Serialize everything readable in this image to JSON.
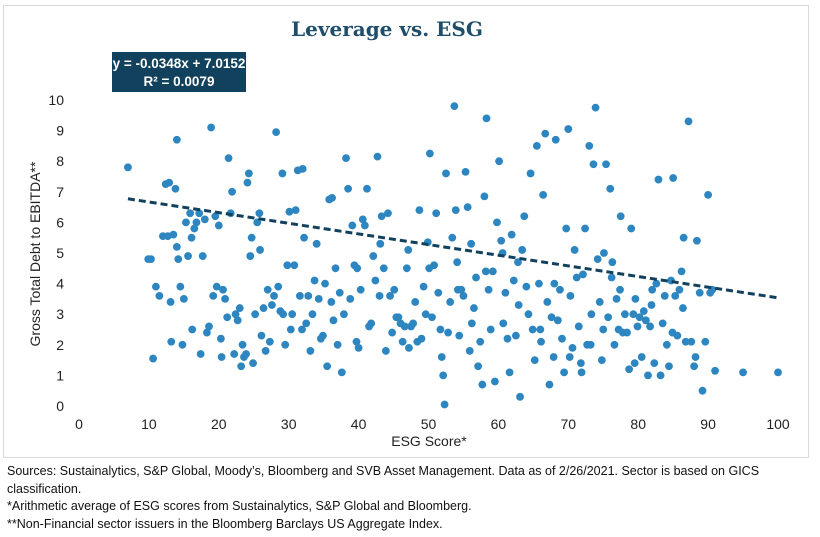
{
  "chart_data": {
    "type": "scatter",
    "title": "Leverage vs. ESG",
    "xlabel": "ESG Score*",
    "ylabel": "Gross Total Debt to EBITDA**",
    "xlim": [
      0,
      100
    ],
    "ylim": [
      0,
      10
    ],
    "x_ticks": [
      0,
      10,
      20,
      30,
      40,
      50,
      60,
      70,
      80,
      90,
      100
    ],
    "y_ticks": [
      0,
      1,
      2,
      3,
      4,
      5,
      6,
      7,
      8,
      9,
      10
    ],
    "grid": false,
    "marker_color": "#2e86c1",
    "trendline": {
      "equation": "y = -0.0348x + 7.0152",
      "r_squared": "R² = 0.0079",
      "slope": -0.0348,
      "intercept": 7.0152,
      "x_range": [
        7,
        100
      ],
      "color": "#11415c",
      "style": "dashed"
    },
    "points": [
      [
        7,
        7.8
      ],
      [
        10.3,
        4.8
      ],
      [
        10.6,
        1.55
      ],
      [
        11,
        3.9
      ],
      [
        11.5,
        3.6
      ],
      [
        12,
        5.55
      ],
      [
        12.4,
        7.25
      ],
      [
        12.7,
        5.55
      ],
      [
        12.9,
        7.3
      ],
      [
        13.2,
        2.1
      ],
      [
        13.5,
        5.6
      ],
      [
        13.8,
        7.1
      ],
      [
        14,
        8.7
      ],
      [
        14,
        5.2
      ],
      [
        14.2,
        4.8
      ],
      [
        14.5,
        3.9
      ],
      [
        14.8,
        2.0
      ],
      [
        15,
        3.5
      ],
      [
        15.3,
        6.0
      ],
      [
        15.6,
        4.9
      ],
      [
        15.9,
        6.3
      ],
      [
        16.2,
        2.5
      ],
      [
        16.5,
        5.8
      ],
      [
        16.8,
        6.0
      ],
      [
        17.2,
        6.3
      ],
      [
        17.4,
        1.7
      ],
      [
        17.7,
        4.9
      ],
      [
        18.0,
        6.1
      ],
      [
        18.3,
        2.4
      ],
      [
        18.6,
        2.6
      ],
      [
        18.9,
        9.1
      ],
      [
        19.2,
        3.6
      ],
      [
        19.5,
        6.2
      ],
      [
        19.7,
        3.9
      ],
      [
        20.0,
        5.9
      ],
      [
        20.3,
        2.2
      ],
      [
        20.6,
        3.8
      ],
      [
        20.9,
        3.5
      ],
      [
        21.2,
        2.9
      ],
      [
        21.4,
        8.1
      ],
      [
        21.7,
        6.3
      ],
      [
        21.9,
        7.0
      ],
      [
        22.2,
        1.7
      ],
      [
        22.4,
        3.0
      ],
      [
        22.7,
        2.8
      ],
      [
        23,
        3.2
      ],
      [
        23.2,
        1.3
      ],
      [
        23.4,
        2.0
      ],
      [
        23.6,
        1.6
      ],
      [
        23.9,
        1.7
      ],
      [
        24.1,
        7.3
      ],
      [
        24.3,
        7.6
      ],
      [
        24.5,
        4.9
      ],
      [
        24.7,
        5.5
      ],
      [
        24.9,
        1.4
      ],
      [
        25.2,
        3.0
      ],
      [
        25.5,
        6.0
      ],
      [
        25.8,
        6.3
      ],
      [
        26.1,
        2.3
      ],
      [
        26.4,
        3.2
      ],
      [
        26.7,
        1.8
      ],
      [
        27.0,
        3.8
      ],
      [
        27.3,
        2.1
      ],
      [
        27.6,
        3.3
      ],
      [
        27.9,
        3.6
      ],
      [
        28.2,
        8.95
      ],
      [
        28.5,
        3.9
      ],
      [
        28.8,
        3.1
      ],
      [
        29.2,
        3.0
      ],
      [
        29.5,
        2.0
      ],
      [
        29.8,
        4.6
      ],
      [
        30.1,
        6.35
      ],
      [
        30.3,
        2.5
      ],
      [
        30.5,
        3.0
      ],
      [
        30.8,
        4.6
      ],
      [
        31,
        6.4
      ],
      [
        31.3,
        7.7
      ],
      [
        31.6,
        3.6
      ],
      [
        31.9,
        2.5
      ],
      [
        32.2,
        5.5
      ],
      [
        32.5,
        2.7
      ],
      [
        32.8,
        3.6
      ],
      [
        33.1,
        1.8
      ],
      [
        33.4,
        3.0
      ],
      [
        33.7,
        4.1
      ],
      [
        34.0,
        5.3
      ],
      [
        34.3,
        3.5
      ],
      [
        34.6,
        2.2
      ],
      [
        34.9,
        2.3
      ],
      [
        35.2,
        4.0
      ],
      [
        35.5,
        1.3
      ],
      [
        35.8,
        6.75
      ],
      [
        36.1,
        3.4
      ],
      [
        36.4,
        2.8
      ],
      [
        36.7,
        4.5
      ],
      [
        37.0,
        2.0
      ],
      [
        37.3,
        3.7
      ],
      [
        37.6,
        1.1
      ],
      [
        37.9,
        3.0
      ],
      [
        38.2,
        8.1
      ],
      [
        38.5,
        7.1
      ],
      [
        38.8,
        3.5
      ],
      [
        39.1,
        5.9
      ],
      [
        39.4,
        4.6
      ],
      [
        39.7,
        2.1
      ],
      [
        40.0,
        1.9
      ],
      [
        40.3,
        3.8
      ],
      [
        40.6,
        6.1
      ],
      [
        40.9,
        5.9
      ],
      [
        41.2,
        7.1
      ],
      [
        41.5,
        2.6
      ],
      [
        41.8,
        2.7
      ],
      [
        42.1,
        4.9
      ],
      [
        42.4,
        4.1
      ],
      [
        42.7,
        8.15
      ],
      [
        43.0,
        3.6
      ],
      [
        43.3,
        6.2
      ],
      [
        43.6,
        4.5
      ],
      [
        43.9,
        1.8
      ],
      [
        44.2,
        6.3
      ],
      [
        44.5,
        3.6
      ],
      [
        44.8,
        2.4
      ],
      [
        45.1,
        3.8
      ],
      [
        45.4,
        2.9
      ],
      [
        45.7,
        2.9
      ],
      [
        46.0,
        2.7
      ],
      [
        46.3,
        2.1
      ],
      [
        46.6,
        2.6
      ],
      [
        46.9,
        4.5
      ],
      [
        47.2,
        1.9
      ],
      [
        47.5,
        2.6
      ],
      [
        47.8,
        2.7
      ],
      [
        48.1,
        3.4
      ],
      [
        48.4,
        2.1
      ],
      [
        48.7,
        6.4
      ],
      [
        49.0,
        2.2
      ],
      [
        49.3,
        3.9
      ],
      [
        49.6,
        3.0
      ],
      [
        49.9,
        5.35
      ],
      [
        50.2,
        8.25
      ],
      [
        50.5,
        2.9
      ],
      [
        50.8,
        4.6
      ],
      [
        51.1,
        6.3
      ],
      [
        51.4,
        3.7
      ],
      [
        51.7,
        2.5
      ],
      [
        51.9,
        1.6
      ],
      [
        52.1,
        1.0
      ],
      [
        52.3,
        0.05
      ],
      [
        52.5,
        7.6
      ],
      [
        52.8,
        2.4
      ],
      [
        53.1,
        3.4
      ],
      [
        53.4,
        5.5
      ],
      [
        53.7,
        9.8
      ],
      [
        53.9,
        6.4
      ],
      [
        54.1,
        4.7
      ],
      [
        54.4,
        2.3
      ],
      [
        54.7,
        3.8
      ],
      [
        55.0,
        3.6
      ],
      [
        55.3,
        7.65
      ],
      [
        55.6,
        6.5
      ],
      [
        55.9,
        1.8
      ],
      [
        56.2,
        2.7
      ],
      [
        56.5,
        3.2
      ],
      [
        56.8,
        4.2
      ],
      [
        57.1,
        1.3
      ],
      [
        57.4,
        2.1
      ],
      [
        57.7,
        0.7
      ],
      [
        58.0,
        6.85
      ],
      [
        58.3,
        9.4
      ],
      [
        58.6,
        3.8
      ],
      [
        58.9,
        2.5
      ],
      [
        59.2,
        4.4
      ],
      [
        59.5,
        0.8
      ],
      [
        59.8,
        6.0
      ],
      [
        60.1,
        8.0
      ],
      [
        60.4,
        5.4
      ],
      [
        60.7,
        2.7
      ],
      [
        61.0,
        3.7
      ],
      [
        61.3,
        2.2
      ],
      [
        61.6,
        1.1
      ],
      [
        61.9,
        5.6
      ],
      [
        62.2,
        4.1
      ],
      [
        62.5,
        2.3
      ],
      [
        62.8,
        4.7
      ],
      [
        63.1,
        0.3
      ],
      [
        63.4,
        5.1
      ],
      [
        63.7,
        6.2
      ],
      [
        64.0,
        3.9
      ],
      [
        64.3,
        3.0
      ],
      [
        64.6,
        7.6
      ],
      [
        64.9,
        2.5
      ],
      [
        65.2,
        1.5
      ],
      [
        65.5,
        8.5
      ],
      [
        65.8,
        4.0
      ],
      [
        66.1,
        2.1
      ],
      [
        66.4,
        6.9
      ],
      [
        66.7,
        8.9
      ],
      [
        67.0,
        3.4
      ],
      [
        67.3,
        0.7
      ],
      [
        67.6,
        2.9
      ],
      [
        67.9,
        1.6
      ],
      [
        68.2,
        8.7
      ],
      [
        68.5,
        2.8
      ],
      [
        68.8,
        3.8
      ],
      [
        69.1,
        2.2
      ],
      [
        69.4,
        1.1
      ],
      [
        69.7,
        5.8
      ],
      [
        70.0,
        9.05
      ],
      [
        70.3,
        3.6
      ],
      [
        70.6,
        1.9
      ],
      [
        70.9,
        5.1
      ],
      [
        71.2,
        4.2
      ],
      [
        71.5,
        2.6
      ],
      [
        71.8,
        1.4
      ],
      [
        72.1,
        4.3
      ],
      [
        72.4,
        5.8
      ],
      [
        72.7,
        2.0
      ],
      [
        73.0,
        8.5
      ],
      [
        73.3,
        3.0
      ],
      [
        73.6,
        7.9
      ],
      [
        73.9,
        9.75
      ],
      [
        74.2,
        4.8
      ],
      [
        74.5,
        3.4
      ],
      [
        74.8,
        1.5
      ],
      [
        75.1,
        5.0
      ],
      [
        75.4,
        7.9
      ],
      [
        75.7,
        2.9
      ],
      [
        76.0,
        7.1
      ],
      [
        76.3,
        4.7
      ],
      [
        76.6,
        2.0
      ],
      [
        76.9,
        3.5
      ],
      [
        77.2,
        2.5
      ],
      [
        77.5,
        6.2
      ],
      [
        77.8,
        2.4
      ],
      [
        78.1,
        3.0
      ],
      [
        78.4,
        2.4
      ],
      [
        78.7,
        1.2
      ],
      [
        79.0,
        5.8
      ],
      [
        79.3,
        3.0
      ],
      [
        79.6,
        3.5
      ],
      [
        79.9,
        2.6
      ],
      [
        80.2,
        2.9
      ],
      [
        80.5,
        1.6
      ],
      [
        80.8,
        3.1
      ],
      [
        81.1,
        2.8
      ],
      [
        81.4,
        1.0
      ],
      [
        81.7,
        2.6
      ],
      [
        82.0,
        3.8
      ],
      [
        82.3,
        1.4
      ],
      [
        82.6,
        4.0
      ],
      [
        82.9,
        7.4
      ],
      [
        83.2,
        1.0
      ],
      [
        83.5,
        2.7
      ],
      [
        83.8,
        3.6
      ],
      [
        84.1,
        2.0
      ],
      [
        84.4,
        1.3
      ],
      [
        84.7,
        4.1
      ],
      [
        85.0,
        7.45
      ],
      [
        85.3,
        3.6
      ],
      [
        85.6,
        2.3
      ],
      [
        85.9,
        3.8
      ],
      [
        86.2,
        4.4
      ],
      [
        86.5,
        5.5
      ],
      [
        86.8,
        2.1
      ],
      [
        87.2,
        9.3
      ],
      [
        87.6,
        2.1
      ],
      [
        88.0,
        1.3
      ],
      [
        88.4,
        5.4
      ],
      [
        88.8,
        3.7
      ],
      [
        89.2,
        0.5
      ],
      [
        89.6,
        2.1
      ],
      [
        90.0,
        6.9
      ],
      [
        90.3,
        3.7
      ],
      [
        90.6,
        3.8
      ],
      [
        91.0,
        1.15
      ],
      [
        95,
        1.1
      ],
      [
        100,
        1.1
      ],
      [
        9.9,
        4.8
      ],
      [
        13.1,
        3.4
      ],
      [
        16.1,
        5.5
      ],
      [
        20.4,
        1.6
      ],
      [
        25.9,
        5.1
      ],
      [
        29.1,
        7.6
      ],
      [
        32.0,
        7.75
      ],
      [
        36.2,
        6.8
      ],
      [
        39.8,
        4.5
      ],
      [
        43.1,
        5.3
      ],
      [
        47.1,
        5.1
      ],
      [
        50.1,
        4.5
      ],
      [
        54.2,
        3.8
      ],
      [
        56.1,
        5.3
      ],
      [
        58.2,
        4.4
      ],
      [
        60.6,
        5.0
      ],
      [
        62.9,
        3.3
      ],
      [
        66.0,
        2.5
      ],
      [
        68.0,
        4.0
      ],
      [
        70.2,
        1.6
      ],
      [
        71.9,
        1.1
      ],
      [
        73.2,
        2.0
      ],
      [
        75.0,
        2.5
      ],
      [
        76.2,
        4.2
      ],
      [
        77.4,
        3.8
      ],
      [
        79.5,
        1.4
      ],
      [
        81.9,
        3.3
      ],
      [
        84.9,
        2.4
      ],
      [
        86.4,
        3.2
      ],
      [
        88.2,
        1.6
      ]
    ]
  },
  "footnotes": {
    "sources": "Sources: Sustainalytics, S&P Global, Moody’s, Bloomberg and SVB Asset Management. Data as of 2/26/2021. Sector is based on GICS classification.",
    "note1": "*Arithmetic average of ESG scores from Sustainalytics, S&P Global and Bloomberg.",
    "note2": "**Non-Financial sector issuers in the Bloomberg Barclays US Aggregate Index."
  }
}
